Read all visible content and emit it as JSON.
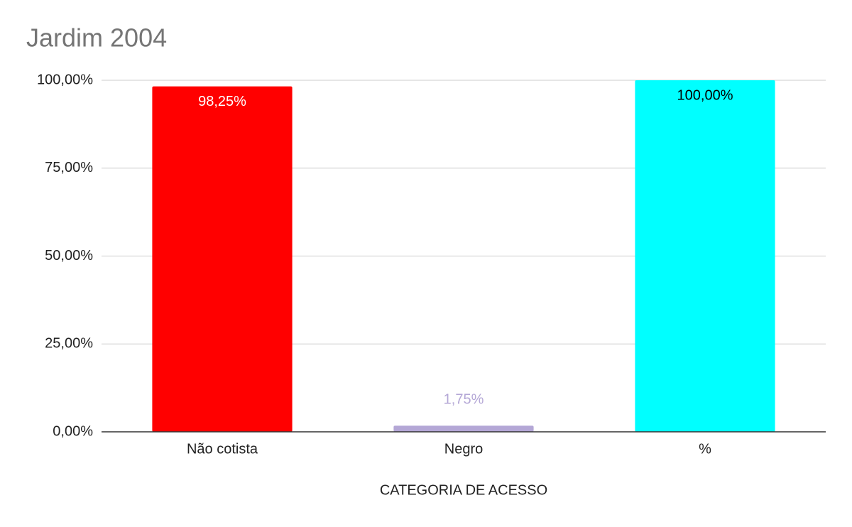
{
  "chart_data": {
    "type": "bar",
    "title": "Jardim 2004",
    "x_label": "CATEGORIA DE ACESSO",
    "categories": [
      "Não cotista",
      "Negro",
      "%"
    ],
    "values": [
      98.25,
      1.75,
      100
    ],
    "value_labels": [
      "98,25%",
      "1,75%",
      "100,00%"
    ],
    "colors": [
      "#ff0000",
      "#b4a7d6",
      "#00ffff"
    ],
    "value_label_colors": [
      "#ffffff",
      "#b4a7d6",
      "#000000"
    ],
    "ylim": [
      0,
      100
    ],
    "yticks": [
      {
        "value": 0,
        "label": "0,00%"
      },
      {
        "value": 25,
        "label": "25,00%"
      },
      {
        "value": 50,
        "label": "50,00%"
      },
      {
        "value": 75,
        "label": "75,00%"
      },
      {
        "value": 100,
        "label": "100,00%"
      }
    ],
    "grid": true
  }
}
